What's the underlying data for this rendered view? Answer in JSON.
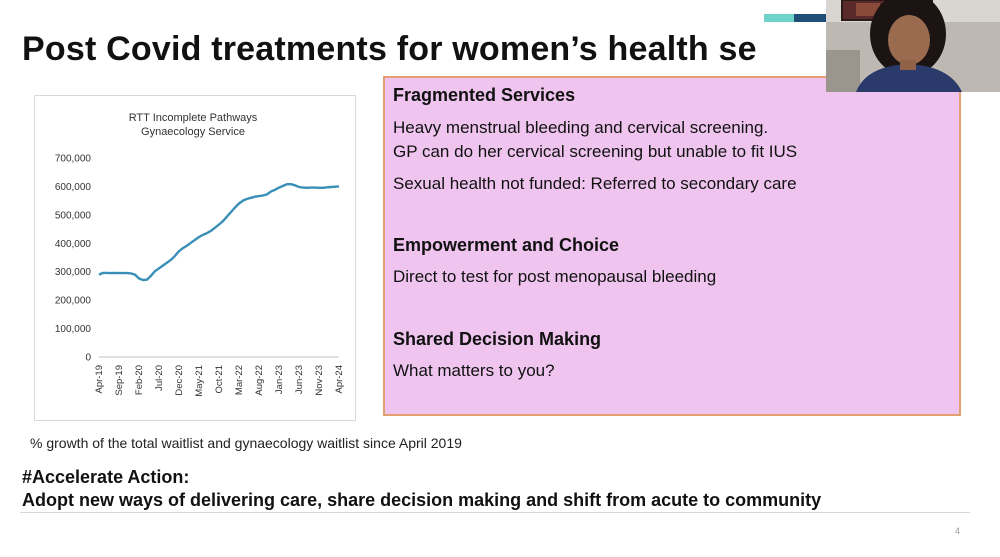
{
  "slide": {
    "title": "Post Covid treatments for women’s health se",
    "accent_colors": [
      "#6fd3c9",
      "#1f4e79"
    ],
    "page_number": "4"
  },
  "chart": {
    "title_line1": "RTT Incomplete Pathways",
    "title_line2": "Gynaecology Service"
  },
  "chart_data": {
    "type": "line",
    "title": "RTT Incomplete Pathways Gynaecology Service",
    "xlabel": "",
    "ylabel": "",
    "ylim": [
      0,
      700000
    ],
    "y_ticks": [
      "0",
      "100,000",
      "200,000",
      "300,000",
      "400,000",
      "500,000",
      "600,000",
      "700,000"
    ],
    "x_tick_labels": [
      "Apr-19",
      "Sep-19",
      "Feb-20",
      "Jul-20",
      "Dec-20",
      "May-21",
      "Oct-21",
      "Mar-22",
      "Aug-22",
      "Jan-23",
      "Jun-23",
      "Nov-23",
      "Apr-24"
    ],
    "grid": false,
    "series": [
      {
        "color": "#3a8fb7",
        "values": [
          290000,
          296000,
          296000,
          295000,
          296000,
          295000,
          295000,
          295000,
          294000,
          290000,
          276000,
          271000,
          272000,
          286000,
          302000,
          312000,
          322000,
          332000,
          342000,
          356000,
          372000,
          383000,
          392000,
          402000,
          412000,
          422000,
          430000,
          436000,
          444000,
          455000,
          466000,
          478000,
          494000,
          510000,
          526000,
          540000,
          550000,
          556000,
          560000,
          564000,
          566000,
          568000,
          572000,
          582000,
          588000,
          596000,
          602000,
          608000,
          608000,
          604000,
          598000,
          596000,
          595000,
          596000,
          596000,
          595000,
          595000,
          597000,
          598000,
          599000,
          600000
        ]
      }
    ]
  },
  "panel": {
    "s1_heading": "Fragmented Services",
    "s1_line1": "Heavy menstrual bleeding and cervical screening.",
    "s1_line2": "GP can do her cervical screening but unable to fit IUS",
    "s1_line3": "Sexual health not funded: Referred to secondary care",
    "s2_heading": "Empowerment and Choice",
    "s2_line1": "Direct to test for post menopausal bleeding",
    "s3_heading": "Shared Decision Making",
    "s3_line1": "What matters to you?"
  },
  "caption": "% growth of the total waitlist and gynaecology waitlist since April 2019",
  "cta": {
    "heading": "#Accelerate Action:",
    "body": "Adopt new ways of delivering care, share decision making and shift from acute to community"
  }
}
